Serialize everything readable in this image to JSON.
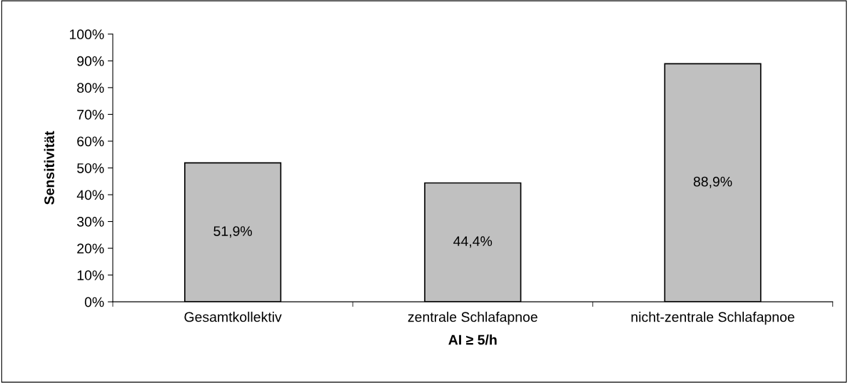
{
  "chart_data": {
    "type": "bar",
    "xlabel": "AI ≥ 5/h",
    "ylabel": "Sensitivität",
    "categories": [
      "Gesamtkollektiv",
      "zentrale Schlafapnoe",
      "nicht-zentrale Schlafapnoe"
    ],
    "values": [
      51.9,
      44.4,
      88.9
    ],
    "color": "#c0c0c0",
    "value_labels": [
      "51,9%",
      "44,4%",
      "88,9%"
    ],
    "ylim": [
      0,
      100
    ],
    "yticks": [
      {
        "value": 0,
        "label": "0%"
      },
      {
        "value": 10,
        "label": "10%"
      },
      {
        "value": 20,
        "label": "20%"
      },
      {
        "value": 30,
        "label": "30%"
      },
      {
        "value": 40,
        "label": "40%"
      },
      {
        "value": 50,
        "label": "50%"
      },
      {
        "value": 60,
        "label": "60%"
      },
      {
        "value": 70,
        "label": "70%"
      },
      {
        "value": 80,
        "label": "80%"
      },
      {
        "value": 90,
        "label": "90%"
      },
      {
        "value": 100,
        "label": "100%"
      }
    ],
    "grid": false,
    "legend": false
  }
}
